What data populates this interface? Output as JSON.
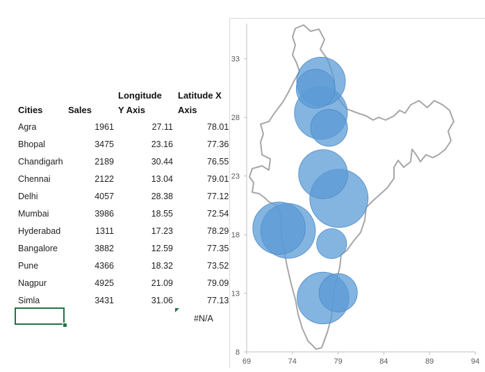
{
  "table": {
    "headers": {
      "cities": "Cities",
      "sales": "Sales",
      "longitude_line1": "Longitude",
      "longitude_line2": "Y Axis",
      "latitude_line1": "Latitude X",
      "latitude_line2": "Axis"
    },
    "rows": [
      {
        "city": "Agra",
        "sales": "1961",
        "lon": "27.11",
        "lat": "78.01"
      },
      {
        "city": "Bhopal",
        "sales": "3475",
        "lon": "23.16",
        "lat": "77.36"
      },
      {
        "city": "Chandigarh",
        "sales": "2189",
        "lon": "30.44",
        "lat": "76.55"
      },
      {
        "city": "Chennai",
        "sales": "2122",
        "lon": "13.04",
        "lat": "79.01"
      },
      {
        "city": "Delhi",
        "sales": "4057",
        "lon": "28.38",
        "lat": "77.12"
      },
      {
        "city": "Mumbai",
        "sales": "3986",
        "lon": "18.55",
        "lat": "72.54"
      },
      {
        "city": "Hyderabad",
        "sales": "1311",
        "lon": "17.23",
        "lat": "78.29"
      },
      {
        "city": "Bangalore",
        "sales": "3882",
        "lon": "12.59",
        "lat": "77.35"
      },
      {
        "city": "Pune",
        "sales": "4366",
        "lon": "18.32",
        "lat": "73.52"
      },
      {
        "city": "Nagpur",
        "sales": "4925",
        "lon": "21.09",
        "lat": "79.09"
      },
      {
        "city": "Simla",
        "sales": "3431",
        "lon": "31.06",
        "lat": "77.13"
      }
    ],
    "error_value": "#N/A"
  },
  "chart_data": {
    "type": "bubble",
    "title": "",
    "xlabel": "",
    "ylabel": "",
    "xlim": [
      69,
      94
    ],
    "ylim": [
      8,
      36
    ],
    "x_ticks": [
      "69",
      "74",
      "79",
      "84",
      "89",
      "94"
    ],
    "y_ticks": [
      "33",
      "28",
      "23",
      "18",
      "13",
      "8"
    ],
    "bubble_color": "#5b9bd5",
    "map_outline_color": "#a6a6a6",
    "points": [
      {
        "city": "Agra",
        "x": 78.01,
        "y": 27.11,
        "size": 1961
      },
      {
        "city": "Bhopal",
        "x": 77.36,
        "y": 23.16,
        "size": 3475
      },
      {
        "city": "Chandigarh",
        "x": 76.55,
        "y": 30.44,
        "size": 2189
      },
      {
        "city": "Chennai",
        "x": 79.01,
        "y": 13.04,
        "size": 2122
      },
      {
        "city": "Delhi",
        "x": 77.12,
        "y": 28.38,
        "size": 4057
      },
      {
        "city": "Mumbai",
        "x": 72.54,
        "y": 18.55,
        "size": 3986
      },
      {
        "city": "Hyderabad",
        "x": 78.29,
        "y": 17.23,
        "size": 1311
      },
      {
        "city": "Bangalore",
        "x": 77.35,
        "y": 12.59,
        "size": 3882
      },
      {
        "city": "Pune",
        "x": 73.52,
        "y": 18.32,
        "size": 4366
      },
      {
        "city": "Nagpur",
        "x": 79.09,
        "y": 21.09,
        "size": 4925
      },
      {
        "city": "Simla",
        "x": 77.13,
        "y": 31.06,
        "size": 3431
      }
    ]
  }
}
